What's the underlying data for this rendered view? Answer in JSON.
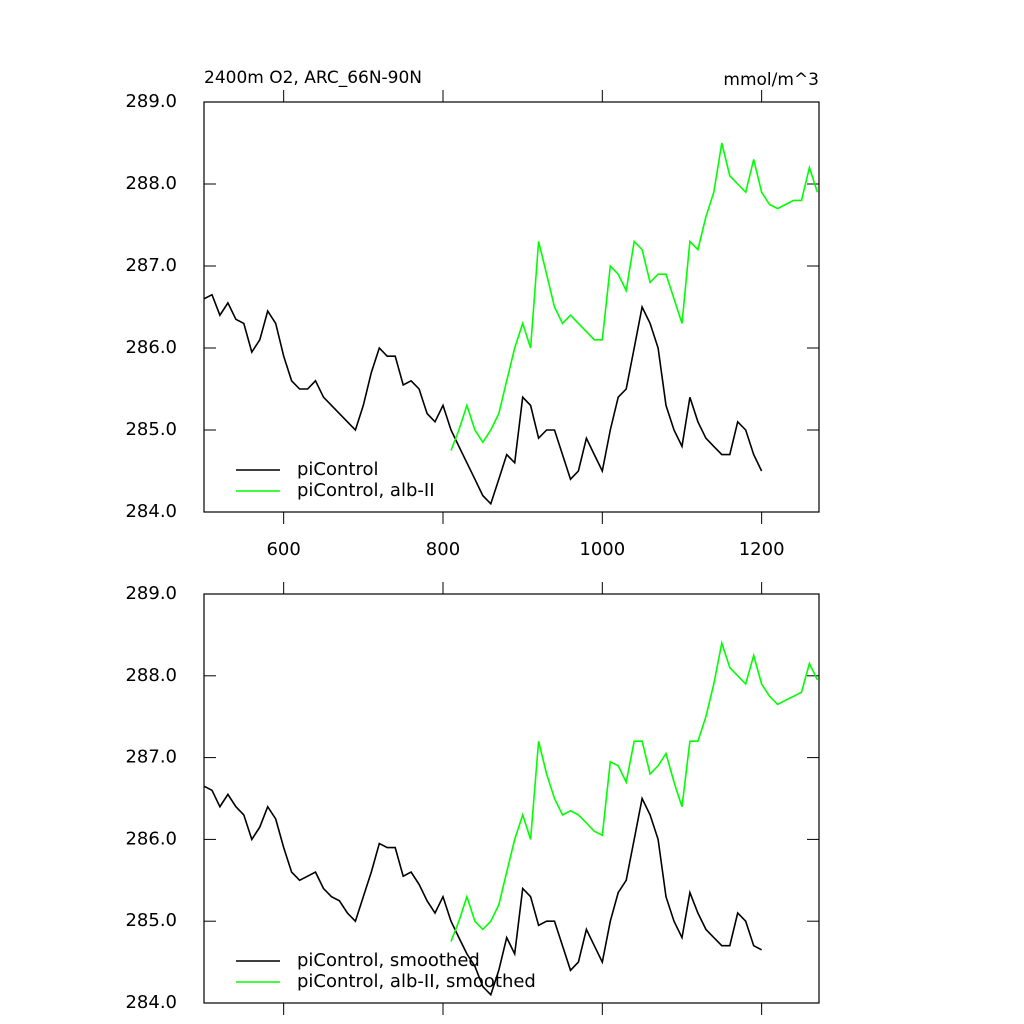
{
  "chart_data": [
    {
      "type": "line",
      "title": "2400m O2, ARC_66N-90N",
      "subtitle": "mmol/m^3",
      "x": [
        500,
        510,
        520,
        530,
        540,
        550,
        560,
        570,
        580,
        590,
        600,
        610,
        620,
        630,
        640,
        650,
        660,
        670,
        680,
        690,
        700,
        710,
        720,
        730,
        740,
        750,
        760,
        770,
        780,
        790,
        800,
        810,
        820,
        830,
        840,
        850,
        860,
        870,
        880,
        890,
        900,
        910,
        920,
        930,
        940,
        950,
        960,
        970,
        980,
        990,
        1000,
        1010,
        1020,
        1030,
        1040,
        1050,
        1060,
        1070,
        1080,
        1090,
        1100,
        1110,
        1120,
        1130,
        1140,
        1150,
        1160,
        1170,
        1180,
        1190,
        1200,
        1210,
        1220,
        1230,
        1240,
        1250,
        1260,
        1270
      ],
      "series": [
        {
          "name": "piControl",
          "color": "#000000",
          "values": [
            286.6,
            286.65,
            286.4,
            286.55,
            286.35,
            286.3,
            285.95,
            286.1,
            286.45,
            286.3,
            285.9,
            285.6,
            285.5,
            285.5,
            285.6,
            285.4,
            285.3,
            285.2,
            285.1,
            285.0,
            285.3,
            285.7,
            286.0,
            285.9,
            285.9,
            285.55,
            285.6,
            285.5,
            285.2,
            285.1,
            285.3,
            285.0,
            284.8,
            284.6,
            284.4,
            284.2,
            284.1,
            284.4,
            284.7,
            284.6,
            285.4,
            285.3,
            284.9,
            285.0,
            285.0,
            284.7,
            284.4,
            284.5,
            284.9,
            284.7,
            284.5,
            285.0,
            285.4,
            285.5,
            286.0,
            286.5,
            286.3,
            286.0,
            285.3,
            285.0,
            284.8,
            285.4,
            285.1,
            284.9,
            284.8,
            284.7,
            284.7,
            285.1,
            285.0,
            284.7,
            284.5,
            null,
            null,
            null,
            null,
            null,
            null,
            null
          ]
        },
        {
          "name": "piControl, alb-II",
          "color": "#00ff00",
          "values": [
            null,
            null,
            null,
            null,
            null,
            null,
            null,
            null,
            null,
            null,
            null,
            null,
            null,
            null,
            null,
            null,
            null,
            null,
            null,
            null,
            null,
            null,
            null,
            null,
            null,
            null,
            null,
            null,
            null,
            null,
            null,
            284.75,
            285.0,
            285.3,
            285.0,
            284.85,
            285.0,
            285.2,
            285.6,
            286.0,
            286.3,
            286.0,
            287.3,
            286.9,
            286.5,
            286.3,
            286.4,
            286.3,
            286.2,
            286.1,
            286.1,
            287.0,
            286.9,
            286.7,
            287.3,
            287.2,
            286.8,
            286.9,
            286.9,
            286.6,
            286.3,
            287.3,
            287.2,
            287.6,
            287.9,
            288.5,
            288.1,
            288.0,
            287.9,
            288.3,
            287.9,
            287.75,
            287.7,
            287.75,
            287.8,
            287.8,
            288.2,
            287.9
          ]
        }
      ],
      "xlim": [
        500,
        1272
      ],
      "xticks": [
        600,
        800,
        1000,
        1200
      ],
      "xtick_labels": true,
      "ylim": [
        284,
        289
      ],
      "yticks": [
        {
          "value": 284,
          "label": "284.0"
        },
        {
          "value": 285,
          "label": "285.0"
        },
        {
          "value": 286,
          "label": "286.0"
        },
        {
          "value": 287,
          "label": "287.0"
        },
        {
          "value": 288,
          "label": "288.0"
        },
        {
          "value": 289,
          "label": "289.0"
        }
      ],
      "legend": "lower left"
    },
    {
      "type": "line",
      "x": [
        500,
        510,
        520,
        530,
        540,
        550,
        560,
        570,
        580,
        590,
        600,
        610,
        620,
        630,
        640,
        650,
        660,
        670,
        680,
        690,
        700,
        710,
        720,
        730,
        740,
        750,
        760,
        770,
        780,
        790,
        800,
        810,
        820,
        830,
        840,
        850,
        860,
        870,
        880,
        890,
        900,
        910,
        920,
        930,
        940,
        950,
        960,
        970,
        980,
        990,
        1000,
        1010,
        1020,
        1030,
        1040,
        1050,
        1060,
        1070,
        1080,
        1090,
        1100,
        1110,
        1120,
        1130,
        1140,
        1150,
        1160,
        1170,
        1180,
        1190,
        1200,
        1210,
        1220,
        1230,
        1240,
        1250,
        1260,
        1270
      ],
      "series": [
        {
          "name": "piControl, smoothed",
          "color": "#000000",
          "values": [
            286.65,
            286.6,
            286.4,
            286.55,
            286.4,
            286.3,
            286.0,
            286.15,
            286.4,
            286.25,
            285.9,
            285.6,
            285.5,
            285.55,
            285.6,
            285.4,
            285.3,
            285.25,
            285.1,
            285.0,
            285.3,
            285.6,
            285.95,
            285.9,
            285.9,
            285.55,
            285.6,
            285.45,
            285.25,
            285.1,
            285.3,
            285.0,
            284.8,
            284.6,
            284.45,
            284.2,
            284.1,
            284.4,
            284.8,
            284.6,
            285.4,
            285.3,
            284.95,
            285.0,
            285.0,
            284.7,
            284.4,
            284.5,
            284.9,
            284.7,
            284.5,
            285.0,
            285.35,
            285.5,
            286.0,
            286.5,
            286.3,
            286.0,
            285.3,
            285.0,
            284.8,
            285.35,
            285.1,
            284.9,
            284.8,
            284.7,
            284.7,
            285.1,
            285.0,
            284.7,
            284.65,
            null,
            null,
            null,
            null,
            null,
            null,
            null
          ]
        },
        {
          "name": "piControl, alb-II, smoothed",
          "color": "#00ff00",
          "values": [
            null,
            null,
            null,
            null,
            null,
            null,
            null,
            null,
            null,
            null,
            null,
            null,
            null,
            null,
            null,
            null,
            null,
            null,
            null,
            null,
            null,
            null,
            null,
            null,
            null,
            null,
            null,
            null,
            null,
            null,
            null,
            284.75,
            285.0,
            285.3,
            285.0,
            284.9,
            285.0,
            285.2,
            285.6,
            286.0,
            286.3,
            286.0,
            287.2,
            286.8,
            286.5,
            286.3,
            286.35,
            286.3,
            286.2,
            286.1,
            286.05,
            286.95,
            286.9,
            286.7,
            287.2,
            287.2,
            286.8,
            286.9,
            287.05,
            286.7,
            286.4,
            287.2,
            287.2,
            287.5,
            287.9,
            288.4,
            288.1,
            288.0,
            287.9,
            288.25,
            287.9,
            287.75,
            287.65,
            287.7,
            287.75,
            287.8,
            288.15,
            287.95
          ]
        }
      ],
      "xlim": [
        500,
        1272
      ],
      "xticks": [
        600,
        800,
        1000,
        1200
      ],
      "xtick_labels": false,
      "ylim": [
        284,
        289
      ],
      "yticks": [
        {
          "value": 284,
          "label": "284.0"
        },
        {
          "value": 285,
          "label": "285.0"
        },
        {
          "value": 286,
          "label": "286.0"
        },
        {
          "value": 287,
          "label": "287.0"
        },
        {
          "value": 288,
          "label": "288.0"
        },
        {
          "value": 289,
          "label": "289.0"
        }
      ],
      "legend": "lower left"
    }
  ]
}
